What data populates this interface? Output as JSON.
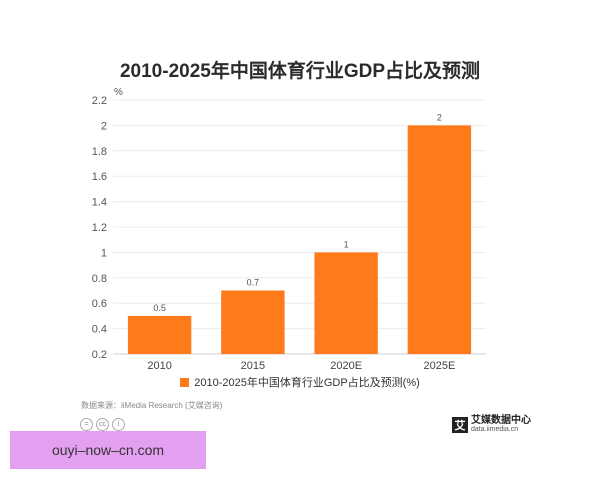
{
  "chart_data": {
    "type": "bar",
    "title": "2010-2025年中国体育行业GDP占比及预测",
    "unit": "%",
    "categories": [
      "2010",
      "2015",
      "2020E",
      "2025E"
    ],
    "series": [
      {
        "name": "2010-2025年中国体育行业GDP占比及预测(%)",
        "values": [
          0.5,
          0.7,
          1,
          2
        ]
      }
    ],
    "data_labels": [
      "0.5",
      "0.7",
      "1",
      "2"
    ],
    "y_ticks": [
      "0.2",
      "0.4",
      "0.6",
      "0.8",
      "1",
      "1.2",
      "1.4",
      "1.6",
      "1.8",
      "2",
      "2.2"
    ],
    "ylim": [
      0.2,
      2.2
    ],
    "grid": true,
    "legend_position": "bottom",
    "bar_color": "#ff7a1a"
  },
  "source": "数据来源：iiMedia Research (艾媒咨询)",
  "license_icons": [
    "=",
    "cc",
    "i"
  ],
  "brand": {
    "mark": "艾",
    "name": "艾媒数据中心",
    "url": "data.iimedia.cn"
  },
  "watermark": "ouyi–now–cn.com"
}
